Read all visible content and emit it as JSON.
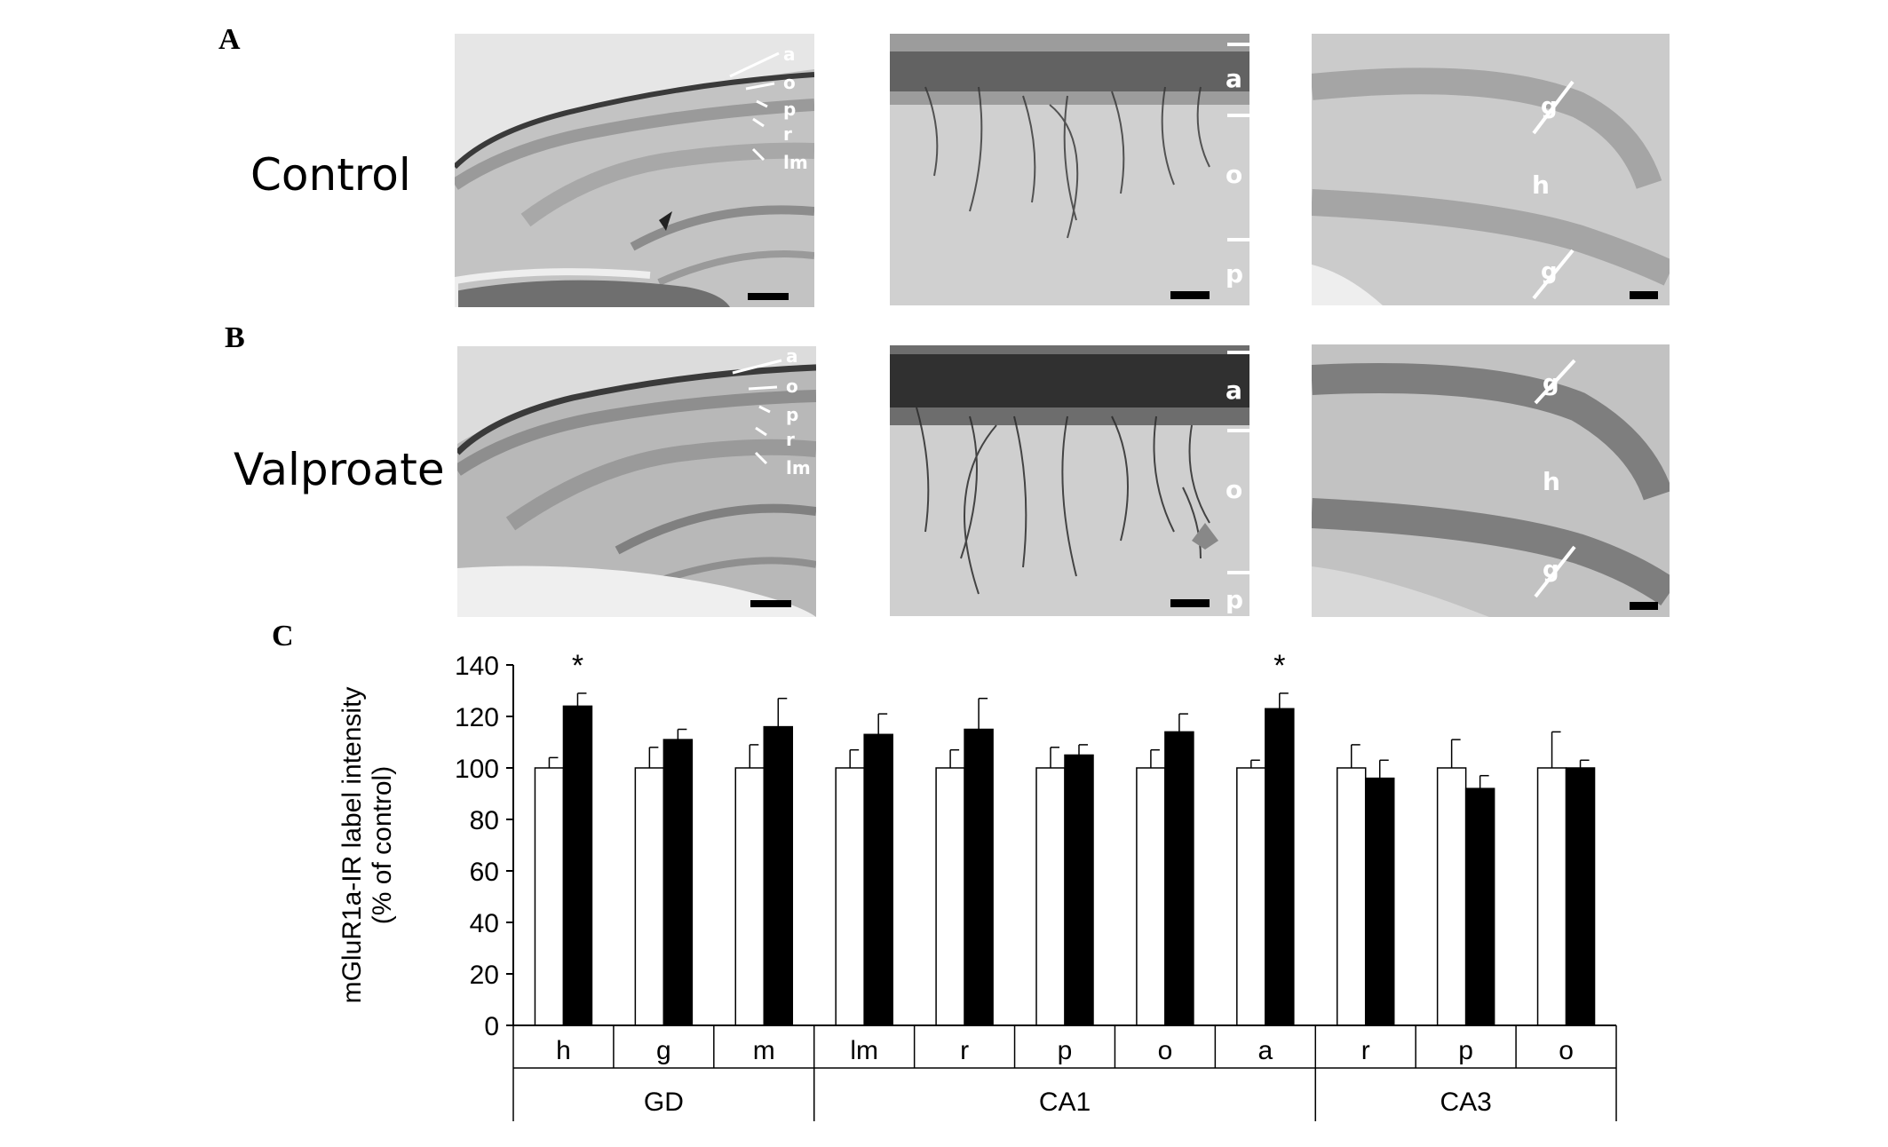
{
  "panels": {
    "A": "A",
    "B": "B",
    "C": "C"
  },
  "rows": {
    "control": "Control",
    "valproate": "Valproate"
  },
  "micrograph_labels": {
    "overview": [
      "a",
      "o",
      "p",
      "r",
      "lm"
    ],
    "ca1_zoom": [
      "a",
      "o",
      "p"
    ],
    "dentate": [
      "g",
      "h",
      "g"
    ]
  },
  "chart_data": {
    "type": "bar",
    "ylabel_line1": "mGluR1a-IR label intensity",
    "ylabel_line2": "(% of control)",
    "ylim": [
      0,
      140
    ],
    "yticks": [
      0,
      20,
      40,
      60,
      80,
      100,
      120,
      140
    ],
    "categories": [
      "h",
      "g",
      "m",
      "lm",
      "r",
      "p",
      "o",
      "a",
      "r",
      "p",
      "o"
    ],
    "groups": [
      {
        "label": "GD",
        "span": [
          0,
          3
        ]
      },
      {
        "label": "CA1",
        "span": [
          3,
          8
        ]
      },
      {
        "label": "CA3",
        "span": [
          8,
          11
        ]
      }
    ],
    "series": [
      {
        "fill": "#ffffff",
        "values": [
          100,
          100,
          100,
          100,
          100,
          100,
          100,
          100,
          100,
          100,
          100
        ],
        "errors": [
          4,
          8,
          9,
          7,
          7,
          8,
          7,
          3,
          9,
          11,
          14
        ]
      },
      {
        "fill": "#000000",
        "values": [
          124,
          111,
          116,
          113,
          115,
          105,
          114,
          123,
          96,
          92,
          100
        ],
        "errors": [
          5,
          4,
          11,
          8,
          12,
          4,
          7,
          6,
          7,
          5,
          3
        ]
      }
    ],
    "significance": [
      {
        "index": 0,
        "label": "*"
      },
      {
        "index": 7,
        "label": "*"
      }
    ]
  }
}
